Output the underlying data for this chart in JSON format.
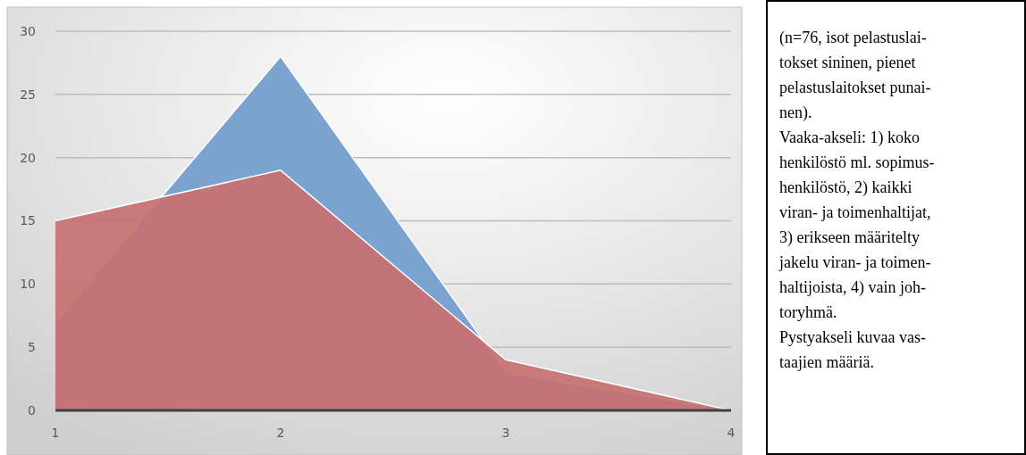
{
  "chart_data": {
    "type": "area",
    "categories": [
      "1",
      "2",
      "3",
      "4"
    ],
    "series": [
      {
        "color": "#7aa3d0",
        "values": [
          7,
          28,
          3,
          0
        ]
      },
      {
        "color": "#c87070",
        "values": [
          15,
          19,
          4,
          0
        ]
      }
    ],
    "ylim": [
      0,
      30
    ],
    "yticks": [
      0,
      5,
      10,
      15,
      20,
      25,
      30
    ],
    "grid": "y",
    "annotations": [
      "(n=76, isot pelastuslai-",
      "tokset sininen, pienet",
      "pelastuslaitokset punai-",
      "nen).",
      "Vaaka-akseli: 1) koko",
      "henkilöstö ml. sopimus-",
      "henkilöstö, 2) kaikki",
      "viran- ja toimenhaltijat,",
      "3) erikseen määritelty",
      "jakelu viran- ja toimen-",
      "haltijoista, 4) vain joh-",
      "toryhmä.",
      "Pystyakseli kuvaa vas-",
      "taajien määriä."
    ]
  }
}
